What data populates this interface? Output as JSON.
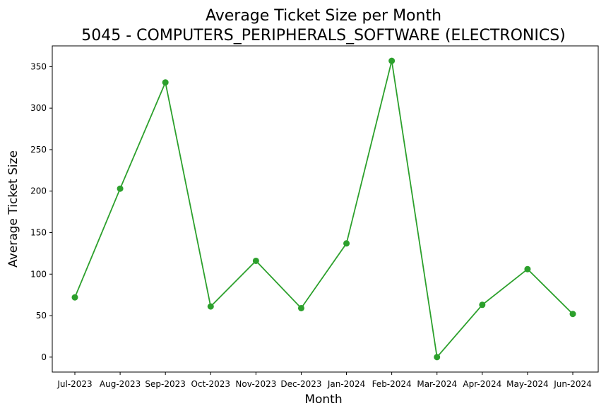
{
  "chart_data": {
    "type": "line",
    "title": "Average Ticket Size per Month",
    "subtitle": "5045 - COMPUTERS_PERIPHERALS_SOFTWARE (ELECTRONICS)",
    "xlabel": "Month",
    "ylabel": "Average Ticket Size",
    "categories": [
      "Jul-2023",
      "Aug-2023",
      "Sep-2023",
      "Oct-2023",
      "Nov-2023",
      "Dec-2023",
      "Jan-2024",
      "Feb-2024",
      "Mar-2024",
      "Apr-2024",
      "May-2024",
      "Jun-2024"
    ],
    "series": [
      {
        "values": [
          72,
          203,
          331,
          61,
          116,
          59,
          137,
          357,
          0,
          63,
          106,
          52
        ],
        "color": "#2ca02c"
      }
    ],
    "yticks": [
      0,
      50,
      100,
      150,
      200,
      250,
      300,
      350
    ],
    "ylim": [
      -18,
      375
    ],
    "grid": false,
    "legend": "none"
  }
}
